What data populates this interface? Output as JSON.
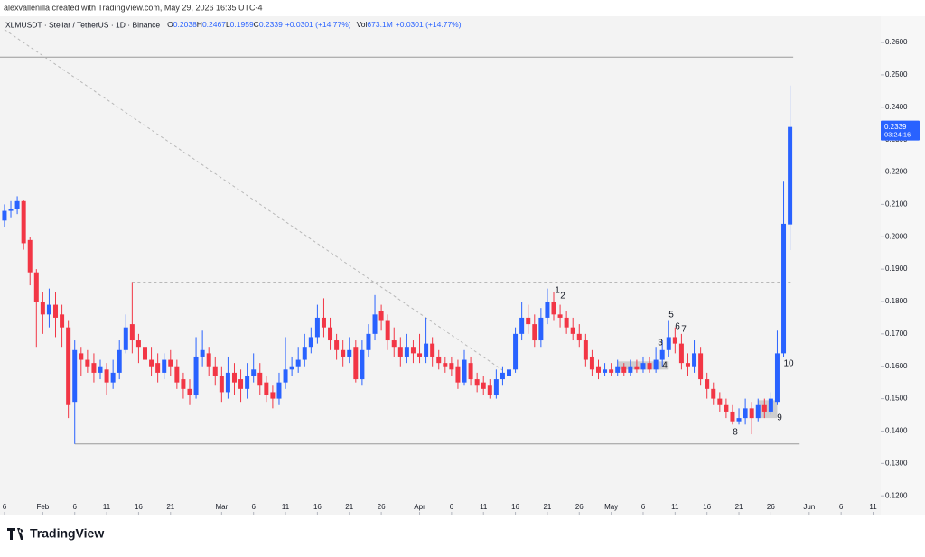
{
  "credit": "alexvallenilla created with TradingView.com, May 29, 2026 16:35 UTC-4",
  "footer": "TradingView",
  "chart_data": {
    "type": "candlestick",
    "title": "XLMUSDT · Stellar / TetherUS · 1D · Binance",
    "legend_items": [
      {
        "label": "O",
        "value": "0.2038"
      },
      {
        "label": "H",
        "value": "0.2467"
      },
      {
        "label": "L",
        "value": "0.1959"
      },
      {
        "label": "C",
        "value": "0.2339"
      },
      {
        "label": "",
        "value": "+0.0301 (+14.77%)"
      }
    ],
    "volume_text": {
      "label": "Vol",
      "value": "673.1M",
      "change": "+0.0301 (+14.77%)"
    },
    "up_color": "#2962ff",
    "down_color": "#f23645",
    "open": [
      0.205,
      0.208,
      0.2085,
      0.211,
      0.199,
      0.189,
      0.18,
      0.176,
      0.179,
      0.176,
      0.172,
      0.149,
      0.164,
      0.162,
      0.161,
      0.158,
      0.159,
      0.155,
      0.158,
      0.165,
      0.173,
      0.168,
      0.166,
      0.162,
      0.161,
      0.158,
      0.162,
      0.16,
      0.156,
      0.153,
      0.151,
      0.163,
      0.164,
      0.16,
      0.157,
      0.152,
      0.158,
      0.156,
      0.153,
      0.157,
      0.158,
      0.155,
      0.152,
      0.15,
      0.155,
      0.159,
      0.16,
      0.162,
      0.166,
      0.169,
      0.175,
      0.172,
      0.168,
      0.165,
      0.163,
      0.166,
      0.156,
      0.165,
      0.17,
      0.177,
      0.174,
      0.168,
      0.166,
      0.163,
      0.166,
      0.164,
      0.163,
      0.167,
      0.163,
      0.161,
      0.161,
      0.16,
      0.155,
      0.161,
      0.156,
      0.155,
      0.154,
      0.151,
      0.156,
      0.157,
      0.159,
      0.17,
      0.175,
      0.173,
      0.168,
      0.175,
      0.18,
      0.176,
      0.175,
      0.172,
      0.17,
      0.168,
      0.163,
      0.16,
      0.158,
      0.159,
      0.158,
      0.16,
      0.158,
      0.16,
      0.159,
      0.161,
      0.159,
      0.162,
      0.165,
      0.169,
      0.167,
      0.161,
      0.16,
      0.164,
      0.156,
      0.153,
      0.15,
      0.148,
      0.146,
      0.143,
      0.144,
      0.147,
      0.144,
      0.148,
      0.146,
      0.149,
      0.164,
      0.2038
    ],
    "high": [
      0.21,
      0.211,
      0.2125,
      0.2115,
      0.2,
      0.19,
      0.183,
      0.184,
      0.183,
      0.179,
      0.174,
      0.168,
      0.166,
      0.165,
      0.164,
      0.162,
      0.161,
      0.162,
      0.168,
      0.176,
      0.186,
      0.17,
      0.168,
      0.166,
      0.164,
      0.164,
      0.165,
      0.162,
      0.158,
      0.156,
      0.169,
      0.171,
      0.166,
      0.163,
      0.16,
      0.163,
      0.161,
      0.159,
      0.161,
      0.164,
      0.161,
      0.157,
      0.154,
      0.158,
      0.169,
      0.163,
      0.166,
      0.17,
      0.172,
      0.179,
      0.181,
      0.175,
      0.17,
      0.168,
      0.169,
      0.168,
      0.168,
      0.173,
      0.182,
      0.179,
      0.176,
      0.172,
      0.169,
      0.17,
      0.168,
      0.17,
      0.175,
      0.169,
      0.165,
      0.163,
      0.163,
      0.162,
      0.165,
      0.163,
      0.158,
      0.157,
      0.156,
      0.159,
      0.16,
      0.162,
      0.172,
      0.18,
      0.179,
      0.176,
      0.178,
      0.184,
      0.183,
      0.179,
      0.177,
      0.175,
      0.173,
      0.17,
      0.165,
      0.162,
      0.161,
      0.161,
      0.162,
      0.161,
      0.162,
      0.162,
      0.163,
      0.163,
      0.166,
      0.168,
      0.174,
      0.172,
      0.17,
      0.164,
      0.168,
      0.166,
      0.158,
      0.155,
      0.152,
      0.15,
      0.148,
      0.147,
      0.15,
      0.149,
      0.15,
      0.15,
      0.152,
      0.171,
      0.217,
      0.2467
    ],
    "low": [
      0.203,
      0.206,
      0.207,
      0.196,
      0.185,
      0.166,
      0.17,
      0.172,
      0.169,
      0.166,
      0.144,
      0.136,
      0.157,
      0.158,
      0.155,
      0.156,
      0.151,
      0.153,
      0.156,
      0.164,
      0.164,
      0.161,
      0.158,
      0.157,
      0.155,
      0.156,
      0.157,
      0.153,
      0.15,
      0.148,
      0.15,
      0.16,
      0.157,
      0.154,
      0.149,
      0.15,
      0.151,
      0.149,
      0.15,
      0.155,
      0.151,
      0.149,
      0.147,
      0.148,
      0.153,
      0.157,
      0.158,
      0.16,
      0.164,
      0.167,
      0.169,
      0.165,
      0.162,
      0.16,
      0.161,
      0.155,
      0.154,
      0.163,
      0.168,
      0.171,
      0.165,
      0.163,
      0.16,
      0.161,
      0.161,
      0.161,
      0.161,
      0.16,
      0.159,
      0.158,
      0.157,
      0.153,
      0.154,
      0.154,
      0.152,
      0.151,
      0.15,
      0.15,
      0.154,
      0.155,
      0.158,
      0.168,
      0.17,
      0.166,
      0.166,
      0.173,
      0.174,
      0.172,
      0.17,
      0.168,
      0.166,
      0.16,
      0.157,
      0.156,
      0.157,
      0.157,
      0.157,
      0.157,
      0.157,
      0.158,
      0.158,
      0.158,
      0.158,
      0.16,
      0.163,
      0.164,
      0.159,
      0.157,
      0.158,
      0.154,
      0.15,
      0.148,
      0.146,
      0.144,
      0.142,
      0.142,
      0.142,
      0.139,
      0.143,
      0.144,
      0.145,
      0.148,
      0.163,
      0.1959
    ],
    "close": [
      0.208,
      0.2085,
      0.211,
      0.198,
      0.189,
      0.18,
      0.176,
      0.179,
      0.175,
      0.172,
      0.148,
      0.165,
      0.162,
      0.16,
      0.158,
      0.16,
      0.155,
      0.158,
      0.165,
      0.172,
      0.168,
      0.166,
      0.162,
      0.16,
      0.158,
      0.162,
      0.16,
      0.155,
      0.153,
      0.151,
      0.163,
      0.165,
      0.16,
      0.157,
      0.152,
      0.158,
      0.155,
      0.153,
      0.157,
      0.159,
      0.154,
      0.151,
      0.15,
      0.155,
      0.159,
      0.16,
      0.162,
      0.166,
      0.169,
      0.175,
      0.172,
      0.168,
      0.165,
      0.163,
      0.165,
      0.156,
      0.165,
      0.17,
      0.176,
      0.174,
      0.168,
      0.166,
      0.163,
      0.166,
      0.164,
      0.163,
      0.167,
      0.163,
      0.161,
      0.16,
      0.159,
      0.155,
      0.162,
      0.156,
      0.154,
      0.153,
      0.151,
      0.156,
      0.158,
      0.159,
      0.17,
      0.175,
      0.173,
      0.168,
      0.175,
      0.18,
      0.176,
      0.175,
      0.172,
      0.17,
      0.168,
      0.162,
      0.159,
      0.158,
      0.159,
      0.158,
      0.16,
      0.158,
      0.16,
      0.159,
      0.161,
      0.159,
      0.162,
      0.165,
      0.169,
      0.167,
      0.161,
      0.16,
      0.164,
      0.156,
      0.153,
      0.15,
      0.148,
      0.146,
      0.143,
      0.144,
      0.147,
      0.144,
      0.148,
      0.146,
      0.15,
      0.164,
      0.204,
      0.2339
    ],
    "last_price": {
      "price": "0.2339",
      "countdown": "03:24:16"
    },
    "xlim": [
      -0.7,
      137.2
    ],
    "xticks": [
      {
        "value": 0,
        "label": "6"
      },
      {
        "value": 6,
        "label": "Feb"
      },
      {
        "value": 11,
        "label": "6"
      },
      {
        "value": 16,
        "label": "11"
      },
      {
        "value": 21,
        "label": "16"
      },
      {
        "value": 26,
        "label": "21"
      },
      {
        "value": 34,
        "label": "Mar"
      },
      {
        "value": 39,
        "label": "6"
      },
      {
        "value": 44,
        "label": "11"
      },
      {
        "value": 49,
        "label": "16"
      },
      {
        "value": 54,
        "label": "21"
      },
      {
        "value": 59,
        "label": "26"
      },
      {
        "value": 65,
        "label": "Apr"
      },
      {
        "value": 70,
        "label": "6"
      },
      {
        "value": 75,
        "label": "11"
      },
      {
        "value": 80,
        "label": "16"
      },
      {
        "value": 85,
        "label": "21"
      },
      {
        "value": 90,
        "label": "26"
      },
      {
        "value": 95,
        "label": "May"
      },
      {
        "value": 100,
        "label": "6"
      },
      {
        "value": 105,
        "label": "11"
      },
      {
        "value": 110,
        "label": "16"
      },
      {
        "value": 115,
        "label": "21"
      },
      {
        "value": 120,
        "label": "26"
      },
      {
        "value": 126,
        "label": "Jun"
      },
      {
        "value": 131,
        "label": "6"
      },
      {
        "value": 136,
        "label": "11"
      }
    ],
    "ylim": [
      0.1142,
      0.2681
    ],
    "yticks": [
      {
        "value": 0.12,
        "label": "0.1200"
      },
      {
        "value": 0.13,
        "label": "0.1300"
      },
      {
        "value": 0.14,
        "label": "0.1400"
      },
      {
        "value": 0.15,
        "label": "0.1500"
      },
      {
        "value": 0.16,
        "label": "0.1600"
      },
      {
        "value": 0.17,
        "label": "0.1700"
      },
      {
        "value": 0.18,
        "label": "0.1800"
      },
      {
        "value": 0.19,
        "label": "0.1900"
      },
      {
        "value": 0.2,
        "label": "0.2000"
      },
      {
        "value": 0.21,
        "label": "0.2100"
      },
      {
        "value": 0.22,
        "label": "0.2200"
      },
      {
        "value": 0.23,
        "label": "0.2300"
      },
      {
        "value": 0.24,
        "label": "0.2400"
      },
      {
        "value": 0.25,
        "label": "0.2500"
      },
      {
        "value": 0.26,
        "label": "0.2600"
      }
    ],
    "lines": [
      {
        "style": "solid",
        "x": [
          -0.7,
          123.5
        ],
        "y": [
          0.2555,
          0.2555
        ]
      },
      {
        "style": "dashed",
        "x": [
          20,
          123.5
        ],
        "y": [
          0.186,
          0.186
        ]
      },
      {
        "style": "solid",
        "x": [
          11,
          124.5
        ],
        "y": [
          0.136,
          0.136
        ]
      },
      {
        "style": "dashed",
        "x": [
          0,
          78
        ],
        "y": [
          0.264,
          0.1588
        ]
      }
    ],
    "boxes": [
      {
        "x": [
          96,
          104
        ],
        "y": [
          0.159,
          0.1615
        ]
      },
      {
        "x": [
          118,
          121
        ],
        "y": [
          0.144,
          0.1495
        ]
      }
    ],
    "annotations": [
      "1",
      "2",
      "3",
      "4",
      "5",
      "6",
      "7",
      "8",
      "9",
      "10"
    ]
  }
}
